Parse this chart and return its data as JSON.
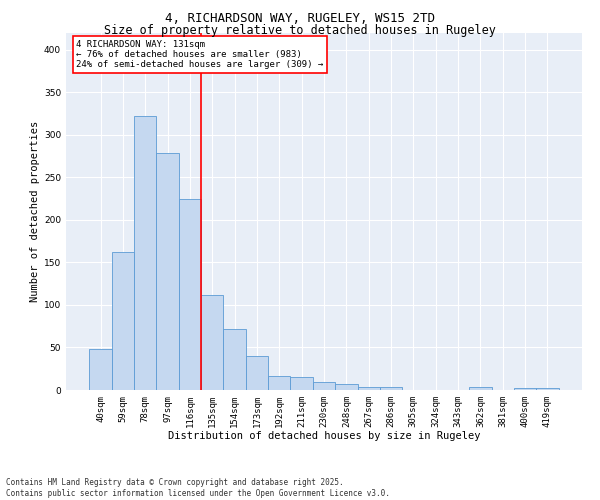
{
  "title_line1": "4, RICHARDSON WAY, RUGELEY, WS15 2TD",
  "title_line2": "Size of property relative to detached houses in Rugeley",
  "xlabel": "Distribution of detached houses by size in Rugeley",
  "ylabel": "Number of detached properties",
  "categories": [
    "40sqm",
    "59sqm",
    "78sqm",
    "97sqm",
    "116sqm",
    "135sqm",
    "154sqm",
    "173sqm",
    "192sqm",
    "211sqm",
    "230sqm",
    "248sqm",
    "267sqm",
    "286sqm",
    "305sqm",
    "324sqm",
    "343sqm",
    "362sqm",
    "381sqm",
    "400sqm",
    "419sqm"
  ],
  "values": [
    48,
    162,
    322,
    278,
    224,
    112,
    72,
    40,
    16,
    15,
    9,
    7,
    4,
    3,
    0,
    0,
    0,
    4,
    0,
    2,
    2
  ],
  "bar_color": "#c5d8f0",
  "bar_edge_color": "#5b9bd5",
  "vline_x_index": 4.5,
  "vline_color": "red",
  "annotation_text": "4 RICHARDSON WAY: 131sqm\n← 76% of detached houses are smaller (983)\n24% of semi-detached houses are larger (309) →",
  "annotation_box_color": "white",
  "annotation_box_edge": "red",
  "ylim": [
    0,
    420
  ],
  "yticks": [
    0,
    50,
    100,
    150,
    200,
    250,
    300,
    350,
    400
  ],
  "background_color": "#e8eef7",
  "grid_color": "white",
  "footnote": "Contains HM Land Registry data © Crown copyright and database right 2025.\nContains public sector information licensed under the Open Government Licence v3.0.",
  "title_fontsize": 9,
  "subtitle_fontsize": 8.5,
  "xlabel_fontsize": 7.5,
  "ylabel_fontsize": 7.5,
  "tick_fontsize": 6.5,
  "annotation_fontsize": 6.5,
  "footnote_fontsize": 5.5
}
